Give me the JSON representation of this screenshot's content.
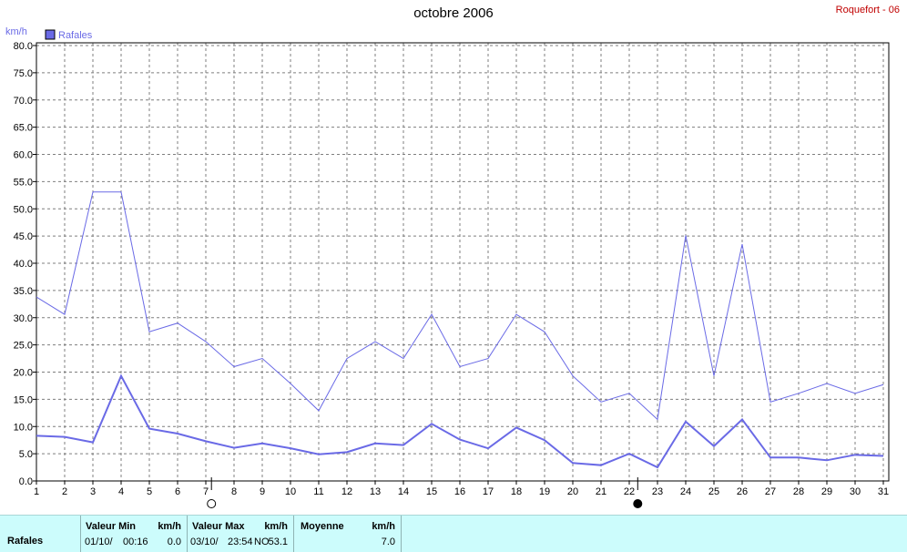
{
  "header": {
    "title": "octobre 2006",
    "station": "Roquefort - 06"
  },
  "colors": {
    "series": "#6a6ae6",
    "grid": "#7f7f7f",
    "axis_text": "#000000",
    "footer_bg": "#ccfcfc"
  },
  "chart_data": {
    "type": "line",
    "ylabel": "km/h",
    "ylim": [
      0,
      80
    ],
    "yticks": [
      "0.0",
      "5.0",
      "10.0",
      "15.0",
      "20.0",
      "25.0",
      "30.0",
      "35.0",
      "40.0",
      "45.0",
      "50.0",
      "55.0",
      "60.0",
      "65.0",
      "70.0",
      "75.0",
      "80.0"
    ],
    "x": [
      1,
      2,
      3,
      4,
      5,
      6,
      7,
      8,
      9,
      10,
      11,
      12,
      13,
      14,
      15,
      16,
      17,
      18,
      19,
      20,
      21,
      22,
      23,
      24,
      25,
      26,
      27,
      28,
      29,
      30,
      31
    ],
    "grid": true,
    "legend": {
      "position": "top-left",
      "entries": [
        "Rafales"
      ]
    },
    "series": [
      {
        "name": "Rafales",
        "style": "thin",
        "values": [
          33.8,
          30.6,
          53.1,
          53.1,
          27.4,
          29.0,
          25.6,
          21.0,
          22.5,
          17.9,
          12.9,
          22.5,
          25.6,
          22.5,
          30.6,
          21.0,
          22.5,
          30.6,
          27.4,
          19.3,
          14.5,
          16.1,
          11.3,
          45.1,
          19.3,
          43.5,
          14.5,
          16.1,
          17.9,
          16.1,
          17.7
        ]
      },
      {
        "name": "",
        "style": "thick",
        "values": [
          8.3,
          8.1,
          7.1,
          19.3,
          9.6,
          8.7,
          7.3,
          6.1,
          6.9,
          6.0,
          4.9,
          5.3,
          6.9,
          6.6,
          10.5,
          7.6,
          6.0,
          9.8,
          7.5,
          3.3,
          2.9,
          5.0,
          2.5,
          10.9,
          6.4,
          11.3,
          4.3,
          4.3,
          3.8,
          4.8,
          4.6
        ]
      }
    ],
    "moon_markers": [
      {
        "day": 7.2,
        "phase": "full"
      },
      {
        "day": 22.3,
        "phase": "new"
      }
    ]
  },
  "footer": {
    "series_label": "Rafales",
    "min": {
      "header": "Valeur Min",
      "unit": "km/h",
      "date": "01/10/",
      "time": "00:16",
      "value": "0.0"
    },
    "max": {
      "header": "Valeur Max",
      "unit": "km/h",
      "date": "03/10/",
      "time": "23:54",
      "dir": "NO",
      "value": "53.1"
    },
    "avg": {
      "header": "Moyenne",
      "unit": "km/h",
      "value": "7.0"
    }
  }
}
